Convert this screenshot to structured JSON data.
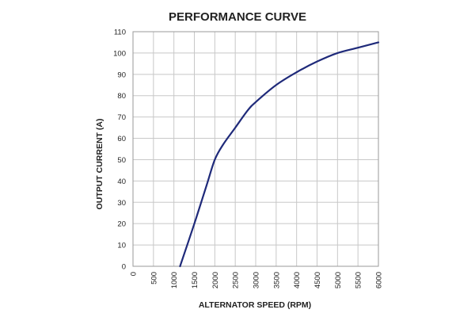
{
  "chart_data": {
    "type": "line",
    "title": "PERFORMANCE CURVE",
    "xlabel": "ALTERNATOR SPEED (RPM)",
    "ylabel": "OUTPUT CURRENT (A)",
    "xlim": [
      0,
      6000
    ],
    "ylim": [
      0,
      110
    ],
    "x_ticks": [
      0,
      500,
      1000,
      1500,
      2000,
      2500,
      3000,
      3500,
      4000,
      4500,
      5000,
      5500,
      6000
    ],
    "y_ticks": [
      0,
      10,
      20,
      30,
      40,
      50,
      60,
      70,
      80,
      90,
      100,
      110
    ],
    "grid": true,
    "legend": "none",
    "series": [
      {
        "color": "#1f2a7a",
        "x": [
          1150,
          1500,
          1800,
          2000,
          2200,
          2500,
          2800,
          3000,
          3500,
          4000,
          4500,
          5000,
          5500,
          6000
        ],
        "y": [
          0,
          20,
          38,
          50,
          57,
          65,
          73,
          77,
          85,
          91,
          96,
          100,
          102.5,
          105
        ]
      }
    ]
  }
}
